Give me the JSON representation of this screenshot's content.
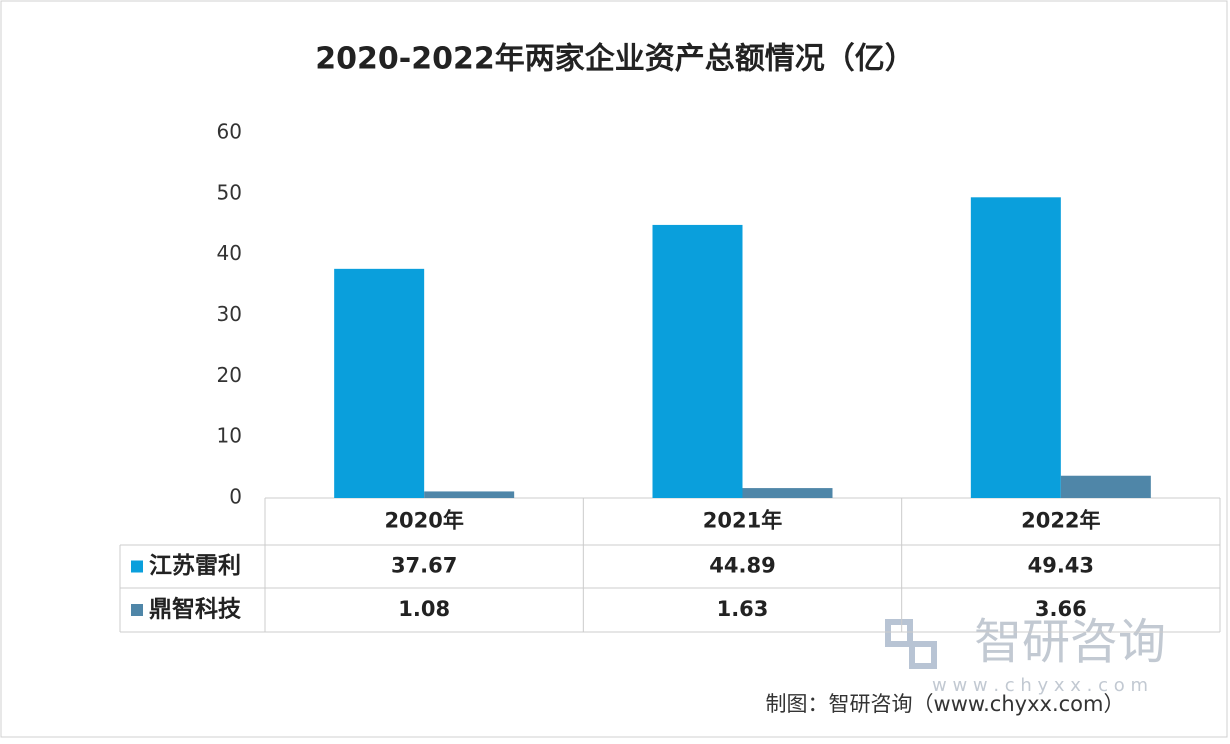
{
  "chart_data": {
    "type": "bar",
    "title": "2020-2022年两家企业资产总额情况（亿）",
    "categories": [
      "2020年",
      "2021年",
      "2022年"
    ],
    "series": [
      {
        "name": "江苏雷利",
        "color": "#0a9fdc",
        "values": [
          37.67,
          44.89,
          49.43
        ]
      },
      {
        "name": "鼎智科技",
        "color": "#4f86a8",
        "values": [
          1.08,
          1.63,
          3.66
        ]
      }
    ],
    "ylim": [
      0,
      60
    ],
    "yticks": [
      0,
      10,
      20,
      30,
      40,
      50,
      60
    ],
    "grid": false,
    "watermark": {
      "name": "智研咨询",
      "url": "w w w . c h y x x . c o m"
    },
    "source": "制图：智研咨询（www.chyxx.com）"
  }
}
